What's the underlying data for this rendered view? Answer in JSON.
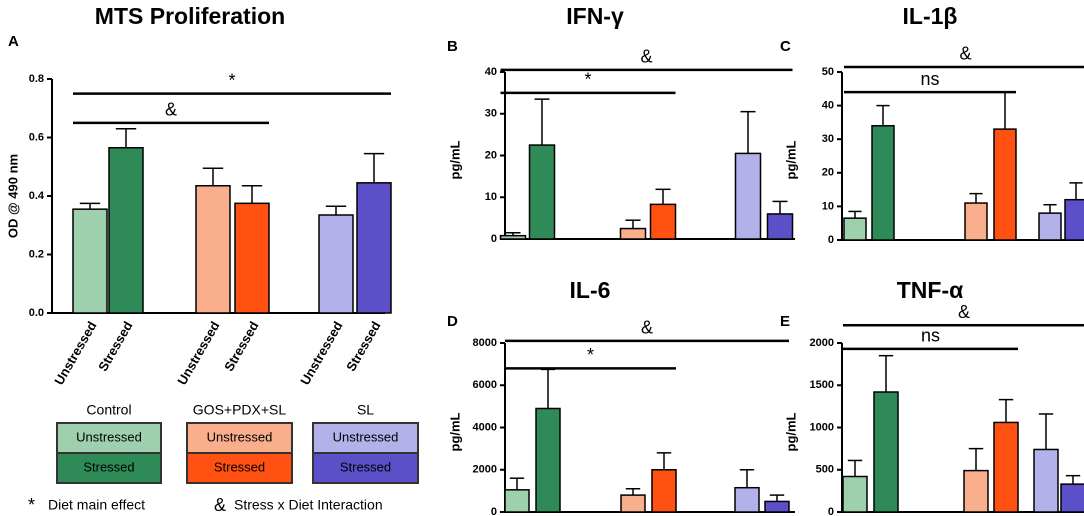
{
  "chart_data": [
    {
      "type": "bar",
      "panel": "A",
      "title": "MTS Proliferation",
      "y_label": "OD @ 490 nm",
      "categories": [
        "Unstressed",
        "Stressed",
        "Unstressed",
        "Stressed",
        "Unstressed",
        "Stressed"
      ],
      "values": [
        0.355,
        0.565,
        0.435,
        0.375,
        0.335,
        0.445
      ],
      "errors": [
        0.02,
        0.065,
        0.06,
        0.06,
        0.03,
        0.1
      ],
      "colors": [
        "#9fd0ad",
        "#2e8b57",
        "#f9ae8c",
        "#fe5112",
        "#b3b1e9",
        "#5b50c8"
      ],
      "ylim": [
        0,
        0.8
      ],
      "yticks": [
        {
          "value": 0,
          "label": "0.0"
        },
        0.2,
        0.4,
        0.6,
        0.8
      ],
      "brackets": [
        {
          "from": 0,
          "to": 5,
          "level": 0.75,
          "label": "*"
        },
        {
          "from": 0,
          "to": 3,
          "level": 0.65,
          "label": "&"
        }
      ]
    },
    {
      "type": "bar",
      "panel": "B",
      "title": "IFN-γ",
      "y_label": "pg/mL",
      "values": [
        0.8,
        22.5,
        2.5,
        8.3,
        20.5,
        6
      ],
      "errors": [
        0.7,
        11,
        2,
        3.6,
        10,
        3
      ],
      "colors": [
        "#9fd0ad",
        "#2e8b57",
        "#f9ae8c",
        "#fe5112",
        "#b3b1e9",
        "#5b50c8"
      ],
      "ylim": [
        0,
        40
      ],
      "yticks": [
        0,
        10,
        20,
        30,
        40
      ],
      "brackets": [
        {
          "from": 0,
          "to": 5,
          "level": 40.5,
          "label": "&"
        },
        {
          "from": 0,
          "to": 3,
          "level": 35,
          "label": "*"
        }
      ]
    },
    {
      "type": "bar",
      "panel": "C",
      "title": "IL-1β",
      "y_label": "pg/mL",
      "values": [
        6.5,
        34,
        11,
        33,
        8,
        12
      ],
      "errors": [
        2,
        6,
        2.8,
        11,
        2.5,
        5
      ],
      "colors": [
        "#9fd0ad",
        "#2e8b57",
        "#f9ae8c",
        "#fe5112",
        "#b3b1e9",
        "#5b50c8"
      ],
      "ylim": [
        0,
        50
      ],
      "yticks": [
        0,
        10,
        20,
        30,
        40,
        50
      ],
      "brackets": [
        {
          "from": 0,
          "to": 5,
          "level": 51.5,
          "label": "&"
        },
        {
          "from": 0,
          "to": 3,
          "level": 44,
          "label": "ns"
        }
      ]
    },
    {
      "type": "bar",
      "panel": "D",
      "title": "IL-6",
      "y_label": "pg/mL",
      "values": [
        1050,
        4900,
        800,
        2000,
        1150,
        500
      ],
      "errors": [
        550,
        1850,
        300,
        800,
        850,
        300
      ],
      "colors": [
        "#9fd0ad",
        "#2e8b57",
        "#f9ae8c",
        "#fe5112",
        "#b3b1e9",
        "#5b50c8"
      ],
      "ylim": [
        0,
        8000
      ],
      "yticks": [
        0,
        2000,
        4000,
        6000,
        8000
      ],
      "brackets": [
        {
          "from": 0,
          "to": 5,
          "level": 8100,
          "label": "&"
        },
        {
          "from": 0,
          "to": 3,
          "level": 6800,
          "label": "*"
        }
      ]
    },
    {
      "type": "bar",
      "panel": "E",
      "title": "TNF-α",
      "y_label": "pg/mL",
      "values": [
        420,
        1420,
        490,
        1060,
        740,
        330
      ],
      "errors": [
        190,
        430,
        260,
        270,
        420,
        100
      ],
      "colors": [
        "#9fd0ad",
        "#2e8b57",
        "#f9ae8c",
        "#fe5112",
        "#b3b1e9",
        "#5b50c8"
      ],
      "ylim": [
        0,
        2000
      ],
      "yticks": [
        0,
        500,
        1000,
        1500,
        2000
      ],
      "brackets": [
        {
          "from": 0,
          "to": 5,
          "level": 2210,
          "label": "&"
        },
        {
          "from": 0,
          "to": 3,
          "level": 1930,
          "label": "ns"
        }
      ]
    }
  ],
  "legend": {
    "groups": [
      {
        "name": "Control",
        "items": [
          "Unstressed",
          "Stressed"
        ],
        "colors": [
          "#9fd0ad",
          "#2e8b57"
        ]
      },
      {
        "name": "GOS+PDX+SL",
        "items": [
          "Unstressed",
          "Stressed"
        ],
        "colors": [
          "#f9ae8c",
          "#fe5112"
        ]
      },
      {
        "name": "SL",
        "items": [
          "Unstressed",
          "Stressed"
        ],
        "colors": [
          "#b3b1e9",
          "#5b50c8"
        ]
      }
    ]
  },
  "notes": [
    {
      "symbol": "*",
      "text": "Diet main effect"
    },
    {
      "symbol": "&",
      "text": "Stress x Diet Interaction"
    }
  ]
}
